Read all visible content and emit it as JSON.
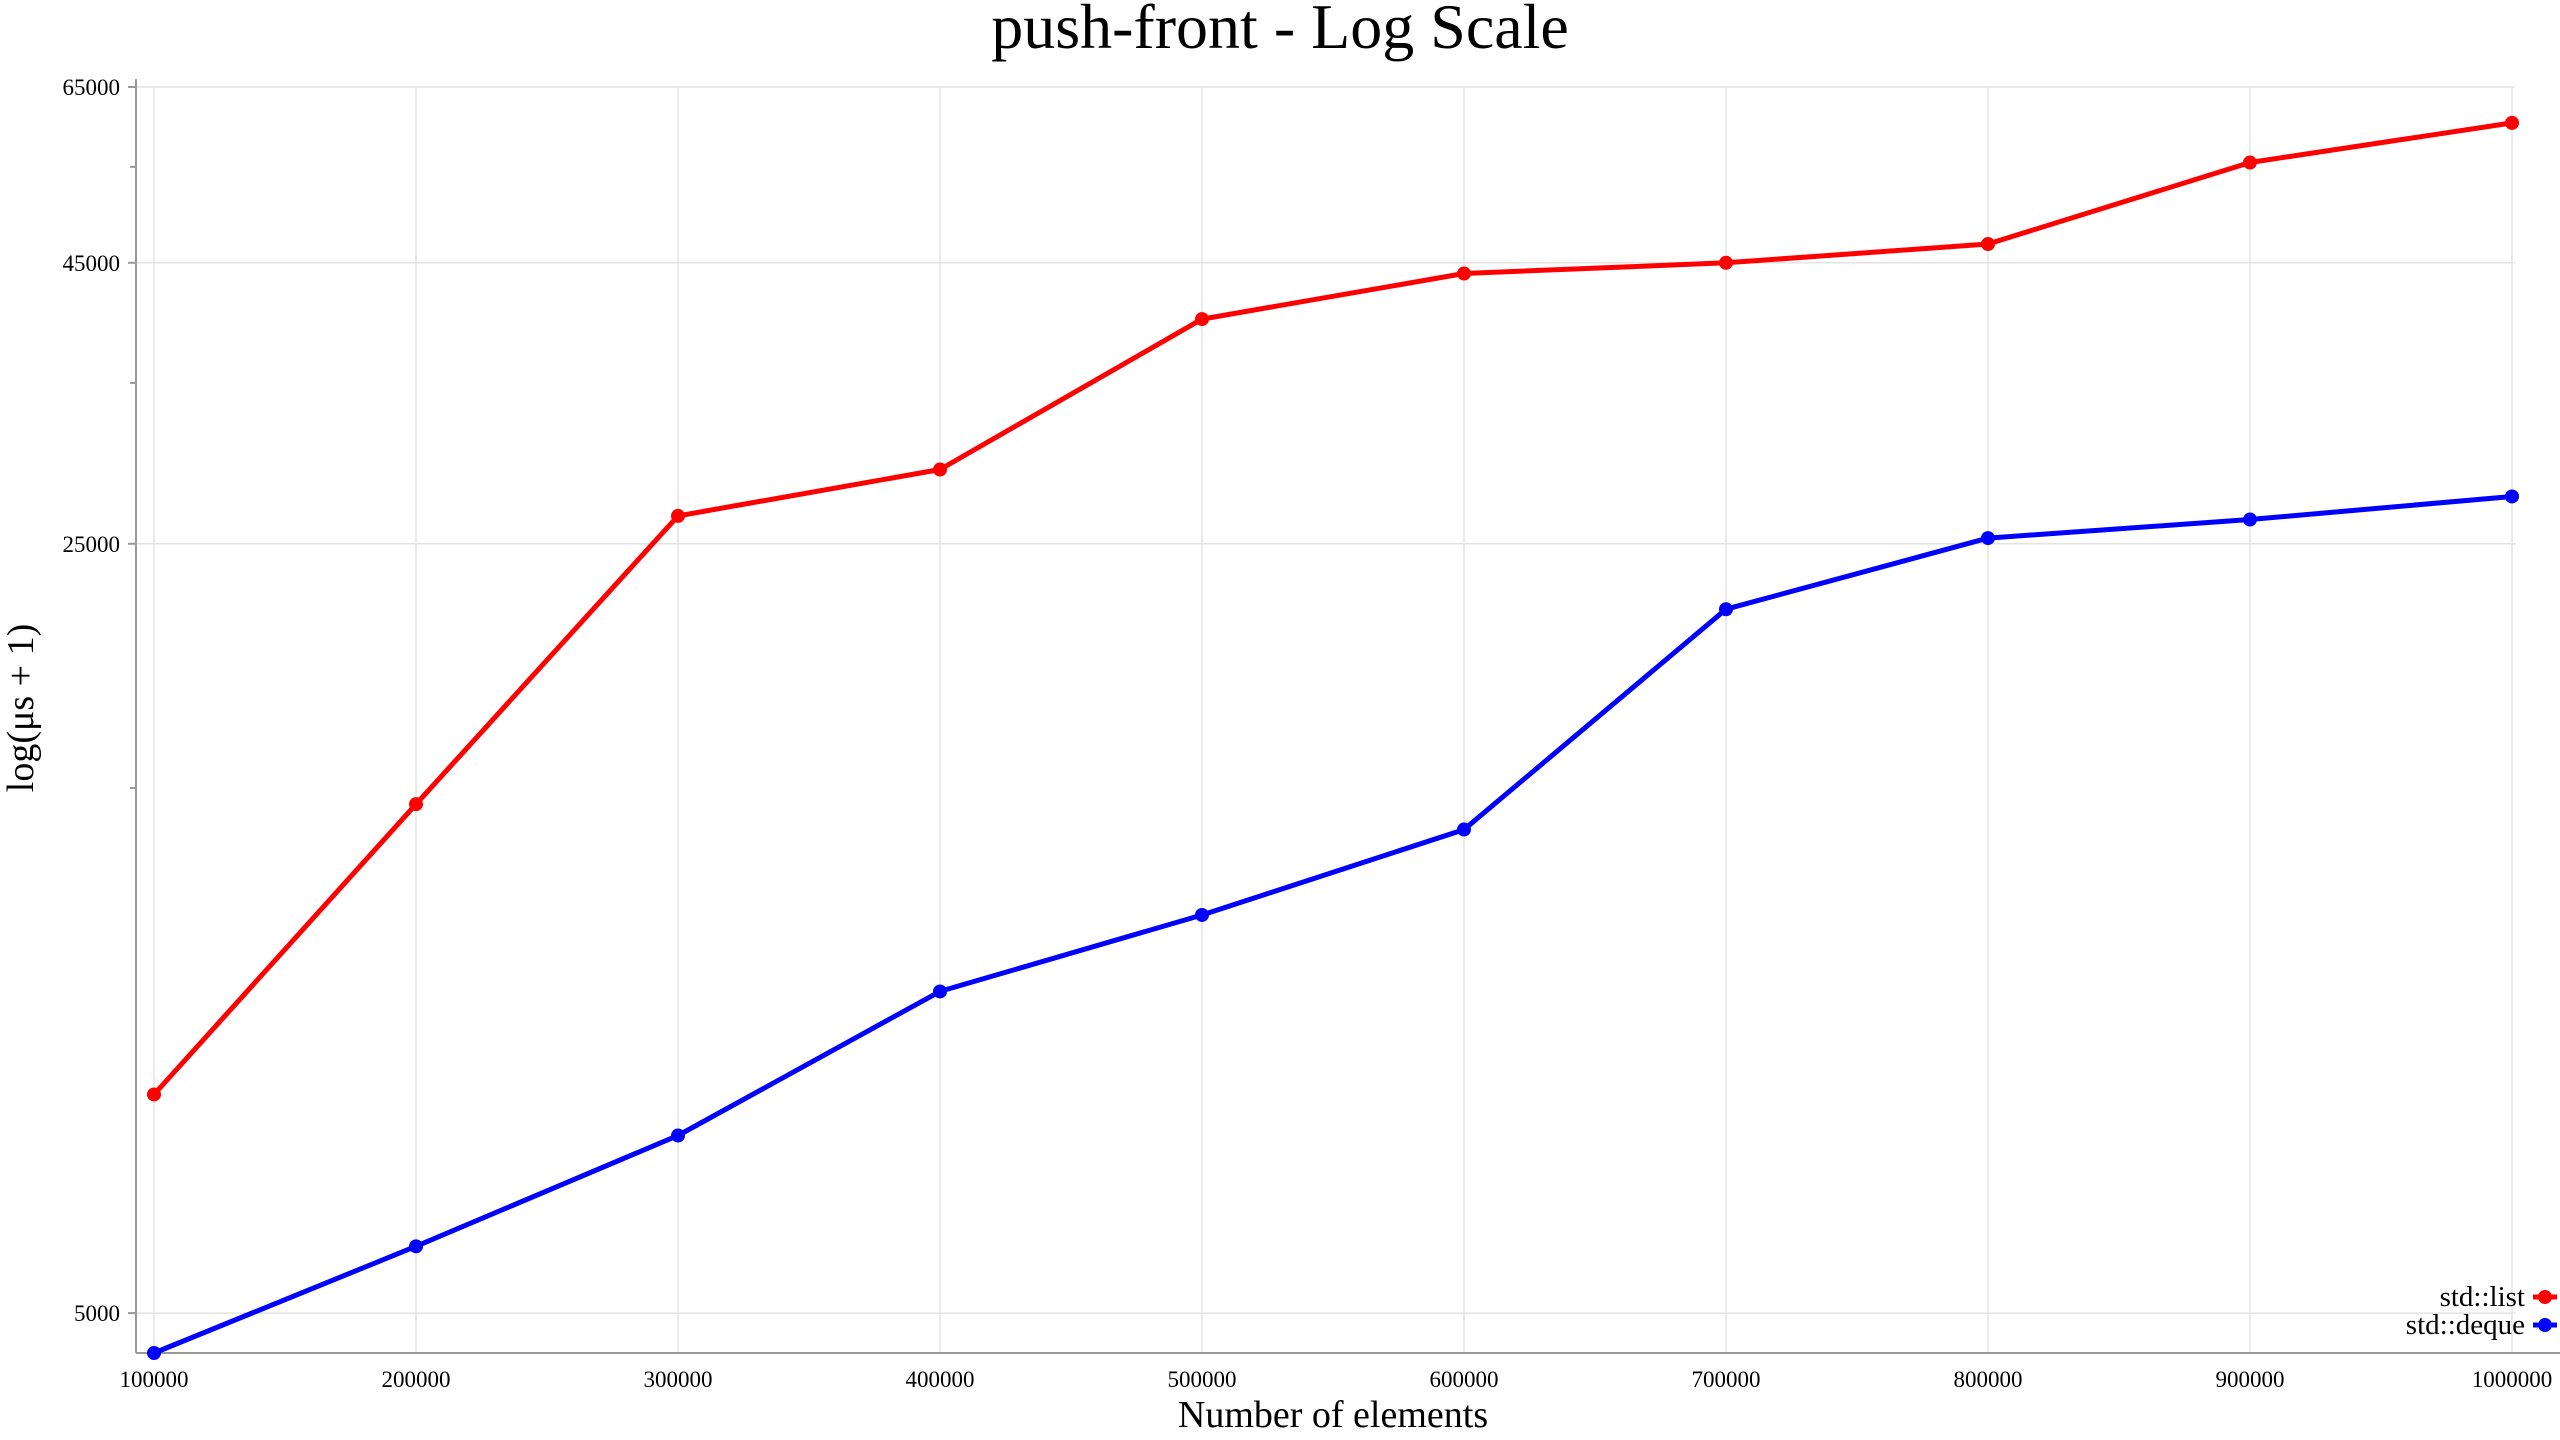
{
  "chart_data": {
    "type": "line",
    "title": "push-front - Log Scale",
    "xlabel": "Number of elements",
    "ylabel": "log(μs + 1)",
    "x": [
      100000,
      200000,
      300000,
      400000,
      500000,
      600000,
      700000,
      800000,
      900000,
      1000000
    ],
    "x_tick_labels": [
      "100000",
      "200000",
      "300000",
      "400000",
      "500000",
      "600000",
      "700000",
      "800000",
      "900000",
      "1000000"
    ],
    "y_scale": "log",
    "ylim": [
      4600,
      65000
    ],
    "y_ticks": [
      5000,
      25000,
      45000,
      65000
    ],
    "y_tick_labels": [
      "5000",
      "25000",
      "45000",
      "65000"
    ],
    "y_minor_ticks": [
      15000,
      35000,
      55000
    ],
    "grid": true,
    "legend_position": "bottom-right",
    "series": [
      {
        "name": "std::list",
        "color": "#ff0000",
        "values": [
          7900,
          14500,
          26500,
          29200,
          40000,
          44000,
          45000,
          46800,
          55500,
          60300
        ]
      },
      {
        "name": "std::deque",
        "color": "#0000ff",
        "values": [
          4600,
          5750,
          7250,
          9800,
          11500,
          13750,
          21800,
          25300,
          26300,
          27600
        ]
      }
    ]
  }
}
